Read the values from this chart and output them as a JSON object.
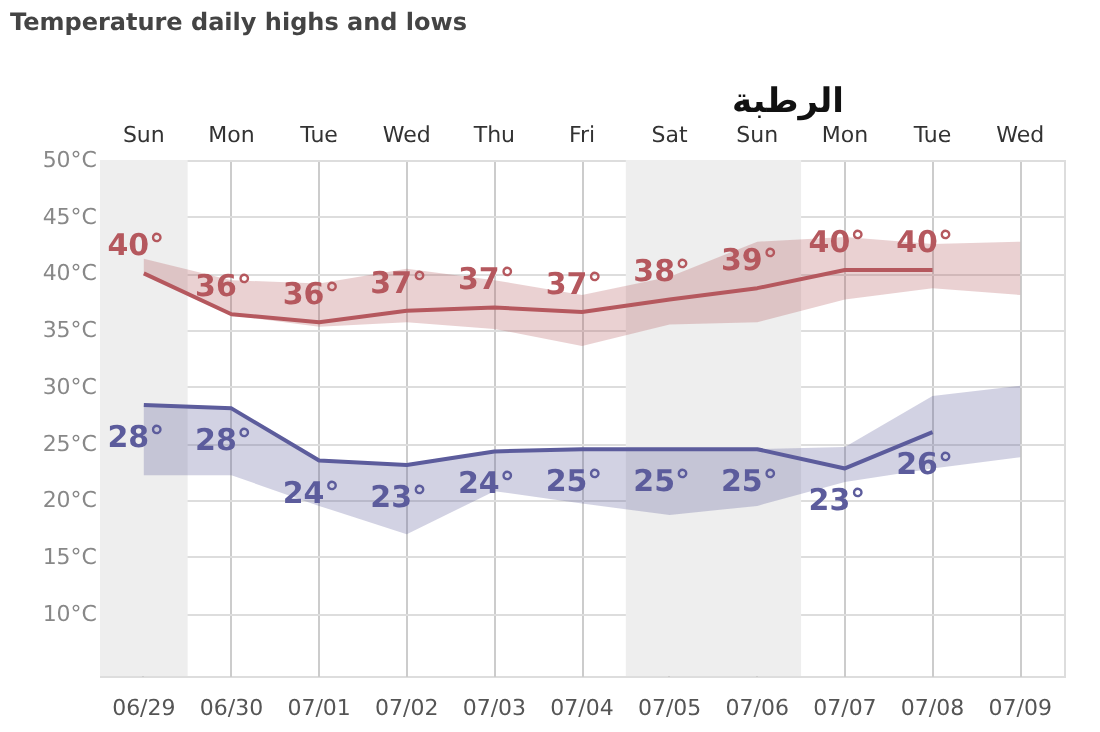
{
  "chart_data": {
    "type": "line",
    "title": "Temperature daily highs and lows",
    "subtitle": "الرطبة",
    "categories": [
      "06/29",
      "06/30",
      "07/01",
      "07/02",
      "07/03",
      "07/04",
      "07/05",
      "07/06",
      "07/07",
      "07/08",
      "07/09"
    ],
    "series": [
      {
        "color": "#b5585e",
        "values": [
          40.0,
          36.4,
          35.7,
          36.7,
          37.0,
          36.6,
          37.7,
          38.7,
          40.3,
          40.3,
          null
        ],
        "lower": [
          40.0,
          36.3,
          35.3,
          35.7,
          35.1,
          33.6,
          35.5,
          35.7,
          37.7,
          38.7,
          38.1
        ],
        "upper": [
          41.3,
          39.4,
          39.1,
          40.4,
          39.4,
          38.1,
          39.7,
          42.8,
          43.2,
          42.6,
          42.8
        ],
        "value_labels": [
          "40°",
          "36°",
          "36°",
          "37°",
          "37°",
          "37°",
          "38°",
          "39°",
          "40°",
          "40°",
          null
        ]
      },
      {
        "color": "#5c5c9c",
        "values": [
          28.4,
          28.1,
          23.5,
          23.1,
          24.3,
          24.5,
          24.5,
          24.5,
          22.8,
          26.0,
          null
        ],
        "lower": [
          22.2,
          22.2,
          19.5,
          17.0,
          20.8,
          19.7,
          18.7,
          19.5,
          21.6,
          22.8,
          23.8
        ],
        "upper": [
          28.4,
          28.1,
          23.5,
          23.1,
          24.3,
          24.5,
          24.5,
          24.5,
          24.7,
          29.2,
          30.1
        ],
        "value_labels": [
          "28°",
          "28°",
          "24°",
          "23°",
          "24°",
          "25°",
          "25°",
          "25°",
          "23°",
          "26°",
          null
        ]
      }
    ],
    "ylim": [
      4.5,
      50
    ],
    "yticks": [
      {
        "value": 10,
        "label": "10°C"
      },
      {
        "value": 15,
        "label": "15°C"
      },
      {
        "value": 20,
        "label": "20°C"
      },
      {
        "value": 25,
        "label": "25°C"
      },
      {
        "value": 30,
        "label": "30°C"
      },
      {
        "value": 35,
        "label": "35°C"
      },
      {
        "value": 40,
        "label": "40°C"
      },
      {
        "value": 45,
        "label": "45°C"
      },
      {
        "value": 50,
        "label": "50°C"
      }
    ],
    "grid": true,
    "marker": "none",
    "line_style": "solid",
    "bands": [
      {
        "axis": "x",
        "from": "06/29",
        "to": "06/29",
        "color": "#eeeeee"
      },
      {
        "axis": "x",
        "from": "07/05",
        "to": "07/06",
        "color": "#eeeeee"
      }
    ],
    "annotations": [
      "Sun",
      "Mon",
      "Tue",
      "Wed",
      "Thu",
      "Fri",
      "Sat",
      "Sun",
      "Mon",
      "Tue",
      "Wed"
    ]
  }
}
